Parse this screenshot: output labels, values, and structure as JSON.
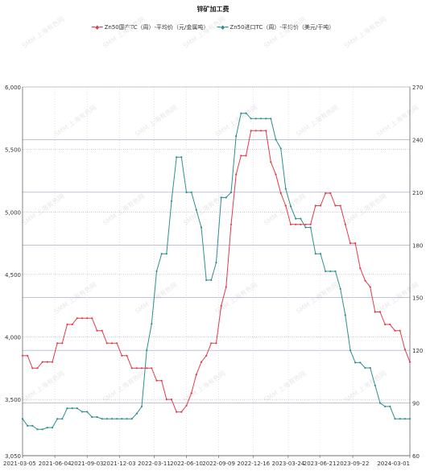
{
  "chart_data": {
    "type": "line",
    "title": "锌矿加工费",
    "x_ticks": [
      "2021-03-05",
      "2021-06-04",
      "2021-09-03",
      "2021-12-03",
      "2022-03-11",
      "2022-06-10",
      "2022-09-09",
      "2022-12-16",
      "2023-03-24",
      "2023-06-21",
      "2023-09-22",
      "2024-03-01"
    ],
    "y_left": {
      "ticks": [
        "3,050",
        "3,500",
        "4,000",
        "4,500",
        "5,000",
        "5,500",
        "6,000"
      ],
      "lim": [
        3050,
        6000
      ]
    },
    "y_right": {
      "ticks": [
        "60",
        "90",
        "120",
        "150",
        "180",
        "210",
        "240",
        "270"
      ],
      "lim": [
        60,
        270
      ]
    },
    "series": [
      {
        "name": "Zn50国产TC（周）-平均价（元/金属吨）",
        "axis": "left",
        "color": "#e33b4a",
        "points": [
          [
            "2021-03-05",
            3850
          ],
          [
            "2021-03-19",
            3850
          ],
          [
            "2021-04-02",
            3750
          ],
          [
            "2021-04-16",
            3750
          ],
          [
            "2021-04-30",
            3800
          ],
          [
            "2021-05-14",
            3800
          ],
          [
            "2021-05-28",
            3800
          ],
          [
            "2021-06-11",
            3950
          ],
          [
            "2021-06-25",
            3950
          ],
          [
            "2021-07-09",
            4100
          ],
          [
            "2021-07-23",
            4100
          ],
          [
            "2021-08-06",
            4150
          ],
          [
            "2021-08-20",
            4150
          ],
          [
            "2021-09-03",
            4150
          ],
          [
            "2021-09-17",
            4150
          ],
          [
            "2021-10-01",
            4050
          ],
          [
            "2021-10-15",
            4050
          ],
          [
            "2021-10-29",
            3950
          ],
          [
            "2021-11-12",
            3950
          ],
          [
            "2021-11-26",
            3950
          ],
          [
            "2021-12-10",
            3850
          ],
          [
            "2021-12-24",
            3850
          ],
          [
            "2022-01-07",
            3750
          ],
          [
            "2022-01-21",
            3750
          ],
          [
            "2022-02-04",
            3750
          ],
          [
            "2022-02-18",
            3750
          ],
          [
            "2022-03-04",
            3750
          ],
          [
            "2022-03-18",
            3650
          ],
          [
            "2022-04-01",
            3650
          ],
          [
            "2022-04-15",
            3500
          ],
          [
            "2022-04-29",
            3500
          ],
          [
            "2022-05-13",
            3400
          ],
          [
            "2022-05-27",
            3400
          ],
          [
            "2022-06-10",
            3450
          ],
          [
            "2022-06-24",
            3550
          ],
          [
            "2022-07-08",
            3700
          ],
          [
            "2022-07-22",
            3800
          ],
          [
            "2022-08-05",
            3850
          ],
          [
            "2022-08-19",
            3950
          ],
          [
            "2022-09-02",
            3950
          ],
          [
            "2022-09-16",
            4250
          ],
          [
            "2022-09-30",
            4400
          ],
          [
            "2022-10-14",
            4900
          ],
          [
            "2022-10-28",
            5300
          ],
          [
            "2022-11-11",
            5450
          ],
          [
            "2022-11-25",
            5450
          ],
          [
            "2022-12-09",
            5650
          ],
          [
            "2022-12-23",
            5650
          ],
          [
            "2023-01-06",
            5650
          ],
          [
            "2023-01-20",
            5650
          ],
          [
            "2023-02-03",
            5400
          ],
          [
            "2023-02-17",
            5300
          ],
          [
            "2023-03-03",
            5150
          ],
          [
            "2023-03-17",
            5050
          ],
          [
            "2023-03-31",
            4900
          ],
          [
            "2023-04-14",
            4900
          ],
          [
            "2023-04-28",
            4900
          ],
          [
            "2023-05-12",
            4900
          ],
          [
            "2023-05-26",
            4900
          ],
          [
            "2023-06-09",
            5050
          ],
          [
            "2023-06-23",
            5050
          ],
          [
            "2023-07-07",
            5150
          ],
          [
            "2023-07-21",
            5150
          ],
          [
            "2023-08-04",
            5050
          ],
          [
            "2023-08-18",
            5050
          ],
          [
            "2023-09-01",
            4900
          ],
          [
            "2023-09-15",
            4750
          ],
          [
            "2023-09-29",
            4750
          ],
          [
            "2023-10-13",
            4550
          ],
          [
            "2023-10-27",
            4450
          ],
          [
            "2023-11-10",
            4400
          ],
          [
            "2023-11-24",
            4200
          ],
          [
            "2023-12-08",
            4200
          ],
          [
            "2023-12-22",
            4100
          ],
          [
            "2024-01-05",
            4100
          ],
          [
            "2024-01-19",
            4050
          ],
          [
            "2024-02-02",
            4050
          ],
          [
            "2024-02-16",
            3900
          ],
          [
            "2024-03-01",
            3800
          ]
        ]
      },
      {
        "name": "Zn50进口TC（周）-平均价（美元/干吨）",
        "axis": "right",
        "color": "#2f8f8f",
        "points": [
          [
            "2021-03-05",
            81
          ],
          [
            "2021-03-19",
            77
          ],
          [
            "2021-04-02",
            77
          ],
          [
            "2021-04-16",
            75
          ],
          [
            "2021-04-30",
            75
          ],
          [
            "2021-05-14",
            76
          ],
          [
            "2021-05-28",
            76
          ],
          [
            "2021-06-11",
            81
          ],
          [
            "2021-06-25",
            81
          ],
          [
            "2021-07-09",
            87
          ],
          [
            "2021-07-23",
            87
          ],
          [
            "2021-08-06",
            87
          ],
          [
            "2021-08-20",
            85
          ],
          [
            "2021-09-03",
            85
          ],
          [
            "2021-09-17",
            82
          ],
          [
            "2021-10-01",
            82
          ],
          [
            "2021-10-15",
            81
          ],
          [
            "2021-10-29",
            81
          ],
          [
            "2021-11-12",
            81
          ],
          [
            "2021-11-26",
            81
          ],
          [
            "2021-12-10",
            81
          ],
          [
            "2021-12-24",
            81
          ],
          [
            "2022-01-07",
            81
          ],
          [
            "2022-01-21",
            84
          ],
          [
            "2022-02-04",
            88
          ],
          [
            "2022-02-18",
            120
          ],
          [
            "2022-03-04",
            135
          ],
          [
            "2022-03-18",
            165
          ],
          [
            "2022-04-01",
            175
          ],
          [
            "2022-04-15",
            175
          ],
          [
            "2022-04-29",
            205
          ],
          [
            "2022-05-13",
            230
          ],
          [
            "2022-05-27",
            230
          ],
          [
            "2022-06-10",
            210
          ],
          [
            "2022-06-24",
            210
          ],
          [
            "2022-07-08",
            200
          ],
          [
            "2022-07-22",
            190
          ],
          [
            "2022-08-05",
            160
          ],
          [
            "2022-08-19",
            160
          ],
          [
            "2022-09-02",
            170
          ],
          [
            "2022-09-16",
            207
          ],
          [
            "2022-09-30",
            207
          ],
          [
            "2022-10-14",
            210
          ],
          [
            "2022-10-28",
            242
          ],
          [
            "2022-11-11",
            255
          ],
          [
            "2022-11-25",
            255
          ],
          [
            "2022-12-09",
            252
          ],
          [
            "2022-12-23",
            252
          ],
          [
            "2023-01-06",
            252
          ],
          [
            "2023-01-20",
            252
          ],
          [
            "2023-02-03",
            252
          ],
          [
            "2023-02-17",
            240
          ],
          [
            "2023-03-03",
            235
          ],
          [
            "2023-03-17",
            212
          ],
          [
            "2023-03-31",
            202
          ],
          [
            "2023-04-14",
            195
          ],
          [
            "2023-04-28",
            195
          ],
          [
            "2023-05-12",
            190
          ],
          [
            "2023-05-26",
            190
          ],
          [
            "2023-06-09",
            175
          ],
          [
            "2023-06-23",
            175
          ],
          [
            "2023-07-07",
            165
          ],
          [
            "2023-07-21",
            165
          ],
          [
            "2023-08-04",
            165
          ],
          [
            "2023-08-18",
            155
          ],
          [
            "2023-09-01",
            140
          ],
          [
            "2023-09-15",
            120
          ],
          [
            "2023-09-29",
            113
          ],
          [
            "2023-10-13",
            113
          ],
          [
            "2023-10-27",
            110
          ],
          [
            "2023-11-10",
            110
          ],
          [
            "2023-11-24",
            100
          ],
          [
            "2023-12-08",
            90
          ],
          [
            "2023-12-22",
            88
          ],
          [
            "2024-01-05",
            88
          ],
          [
            "2024-01-19",
            81
          ],
          [
            "2024-02-02",
            81
          ],
          [
            "2024-02-16",
            81
          ],
          [
            "2024-03-01",
            81
          ]
        ]
      }
    ],
    "grid": true,
    "legend_position": "top-center",
    "watermark": "SMM 上海有色网"
  }
}
